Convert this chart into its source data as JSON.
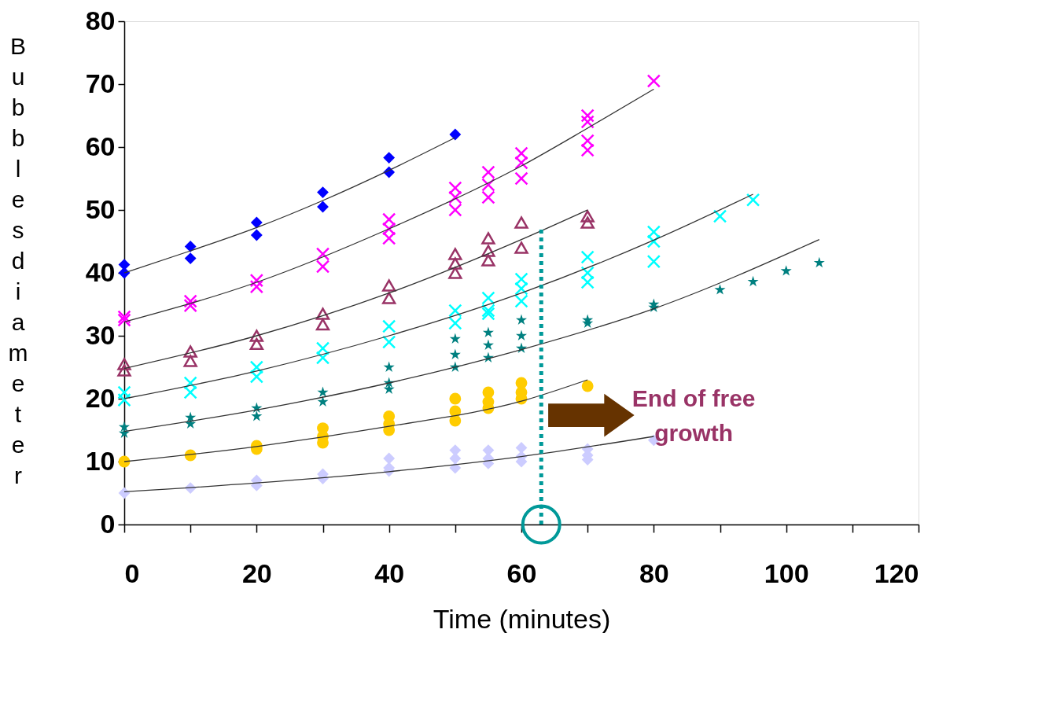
{
  "chart_data": {
    "type": "scatter",
    "xlabel": "Time (minutes)",
    "ylabel": "Bubbles diameter",
    "xlim": [
      0,
      120
    ],
    "ylim": [
      0,
      80
    ],
    "xticks": [
      0,
      {
        "value": 10,
        "label": null
      },
      20,
      {
        "value": 30,
        "label": null
      },
      40,
      {
        "value": 50,
        "label": null
      },
      60,
      {
        "value": 70,
        "label": null
      },
      80,
      {
        "value": 90,
        "label": null
      },
      100,
      {
        "value": 110,
        "label": null
      },
      120
    ],
    "yticks": [
      0,
      10,
      20,
      30,
      40,
      50,
      60,
      70,
      80
    ],
    "grid": false,
    "series": [
      {
        "marker": "diamond",
        "color": "#0000ff",
        "x": [
          0,
          0,
          10,
          10,
          20,
          20,
          30,
          30,
          40,
          40,
          50
        ],
        "values": [
          41.3,
          40,
          44.2,
          42.3,
          48,
          46,
          52.8,
          50.5,
          58.3,
          56,
          62
        ]
      },
      {
        "marker": "cross",
        "color": "#ff00ff",
        "x": [
          0,
          0,
          10,
          10,
          20,
          20,
          30,
          30,
          40,
          40,
          40,
          50,
          50,
          50,
          55,
          55,
          55,
          60,
          60,
          60,
          70,
          70,
          70,
          70,
          80
        ],
        "values": [
          33,
          32.5,
          35.5,
          34.8,
          38.8,
          37.8,
          43,
          41,
          48.5,
          47,
          45.5,
          53.5,
          52,
          50,
          56,
          54,
          52,
          59,
          57.5,
          55,
          65,
          64,
          61,
          59.5,
          70.5
        ]
      },
      {
        "marker": "triangle",
        "color": "#993366",
        "x": [
          0,
          0,
          10,
          10,
          20,
          20,
          30,
          30,
          40,
          40,
          50,
          50,
          50,
          55,
          55,
          55,
          60,
          60,
          70,
          70
        ],
        "values": [
          25.5,
          24.5,
          27.5,
          26,
          30,
          28.7,
          33.5,
          31.8,
          38,
          36,
          43,
          41.5,
          40,
          45.5,
          43.5,
          42,
          48,
          44,
          49,
          48
        ]
      },
      {
        "marker": "cross",
        "color": "#00ffff",
        "x": [
          0,
          0,
          10,
          10,
          20,
          20,
          30,
          30,
          40,
          40,
          50,
          50,
          55,
          55,
          55,
          60,
          60,
          60,
          70,
          70,
          70,
          80,
          80,
          80,
          90,
          95
        ],
        "values": [
          21,
          19.8,
          22.5,
          21,
          25,
          23.5,
          28,
          26.5,
          31.5,
          29,
          34,
          32,
          36,
          34,
          33.5,
          39,
          37.5,
          35.5,
          42.5,
          40,
          38.5,
          46.5,
          45,
          41.8,
          49,
          51.6
        ]
      },
      {
        "marker": "star",
        "color": "#008080",
        "x": [
          0,
          0,
          10,
          10,
          20,
          20,
          30,
          30,
          40,
          40,
          40,
          50,
          50,
          50,
          55,
          55,
          55,
          60,
          60,
          60,
          70,
          70,
          80,
          80,
          90,
          95,
          100,
          105
        ],
        "values": [
          15.5,
          14.5,
          17,
          16,
          18.5,
          17.2,
          21,
          19.5,
          25,
          22.5,
          21.5,
          29.5,
          27,
          25,
          30.5,
          28.5,
          26.5,
          32.5,
          30,
          28,
          32.5,
          32,
          35,
          34.5,
          37.3,
          38.6,
          40.3,
          41.6
        ]
      },
      {
        "marker": "circle",
        "color": "#ffcc00",
        "x": [
          0,
          10,
          20,
          20,
          30,
          30,
          30,
          40,
          40,
          40,
          50,
          50,
          50,
          55,
          55,
          55,
          60,
          60,
          60,
          70
        ],
        "values": [
          10,
          11,
          12.5,
          12,
          15.3,
          14,
          13,
          17.2,
          16,
          15,
          20,
          18,
          16.5,
          21,
          19.5,
          18.5,
          22.5,
          21,
          20,
          22
        ]
      },
      {
        "marker": "diamond",
        "color": "#ccccff",
        "x": [
          0,
          10,
          20,
          20,
          30,
          30,
          40,
          40,
          40,
          50,
          50,
          50,
          55,
          55,
          55,
          60,
          60,
          60,
          70,
          70,
          70,
          80
        ],
        "values": [
          5,
          5.8,
          7,
          6.2,
          8,
          7.3,
          10.5,
          9,
          8.5,
          11.8,
          10.5,
          9,
          11.8,
          10.5,
          9.7,
          12.2,
          10.8,
          10,
          12,
          11,
          10.3,
          13.4
        ]
      },
      {
        "type": "line",
        "line_style": "solid",
        "color": "#333333",
        "x": [
          0,
          10,
          20,
          30,
          40,
          50
        ],
        "values": [
          40,
          43.5,
          47.2,
          51.5,
          56.3,
          61.5
        ]
      },
      {
        "type": "line",
        "line_style": "solid",
        "color": "#333333",
        "x": [
          0,
          20,
          40,
          60,
          70,
          80
        ],
        "values": [
          32.2,
          38.5,
          47,
          57,
          63,
          69.2
        ]
      },
      {
        "type": "line",
        "line_style": "solid",
        "color": "#333333",
        "x": [
          0,
          20,
          40,
          60,
          70
        ],
        "values": [
          24.8,
          30,
          36.8,
          45.3,
          50
        ]
      },
      {
        "type": "line",
        "line_style": "solid",
        "color": "#333333",
        "x": [
          0,
          20,
          40,
          60,
          80,
          95
        ],
        "values": [
          20,
          24.4,
          30,
          36.8,
          45.2,
          52.5
        ]
      },
      {
        "type": "line",
        "line_style": "solid",
        "color": "#333333",
        "x": [
          0,
          20,
          40,
          60,
          80,
          105
        ],
        "values": [
          14.8,
          18.2,
          22.5,
          27.8,
          34.3,
          45.3
        ]
      },
      {
        "type": "line",
        "line_style": "solid",
        "color": "#333333",
        "x": [
          0,
          20,
          40,
          60,
          70
        ],
        "values": [
          10,
          12.4,
          15.6,
          19.6,
          23
        ]
      },
      {
        "type": "line",
        "line_style": "solid",
        "color": "#333333",
        "x": [
          0,
          20,
          40,
          60,
          80
        ],
        "values": [
          5.2,
          6.6,
          8.4,
          10.8,
          14
        ]
      },
      {
        "type": "line",
        "line_style": "dotted",
        "color": "#009999",
        "x": [
          63,
          63
        ],
        "values": [
          0,
          47
        ]
      }
    ],
    "annotations": [
      "End of free growth"
    ]
  }
}
